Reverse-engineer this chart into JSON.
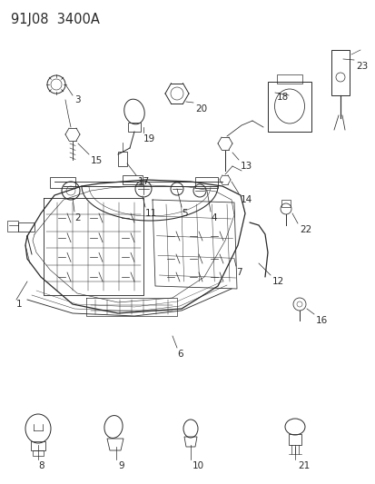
{
  "title": "91J08  3400A",
  "bg_color": "#ffffff",
  "lc": "#2a2a2a",
  "title_fontsize": 10.5,
  "label_fontsize": 7.5,
  "figsize": [
    4.14,
    5.33
  ],
  "dpi": 100
}
